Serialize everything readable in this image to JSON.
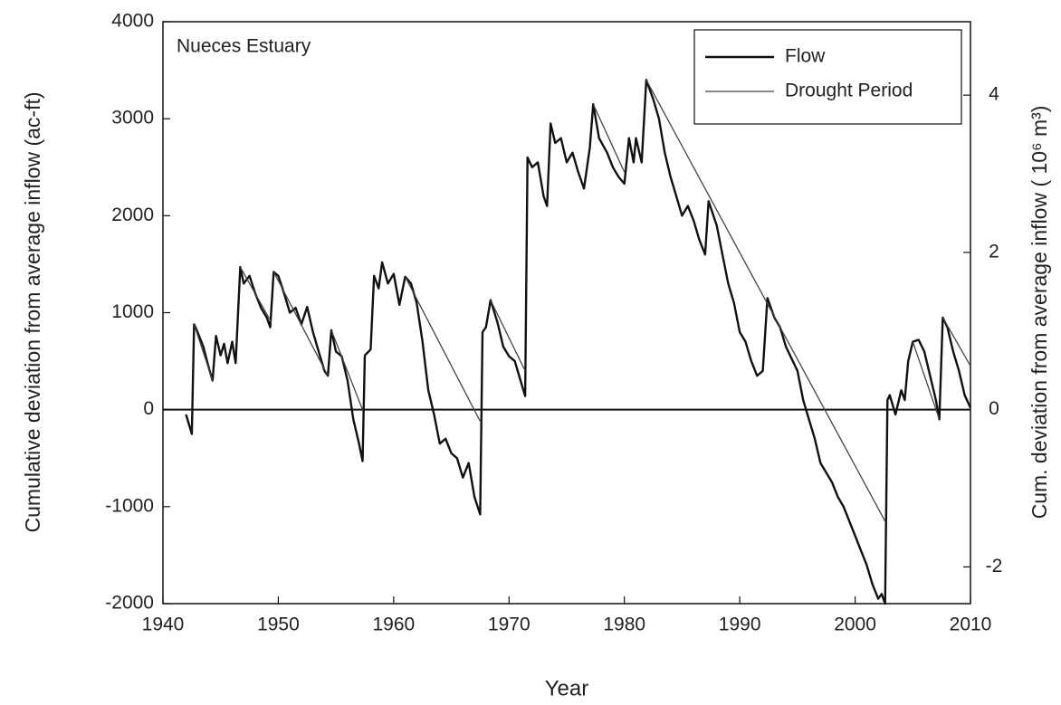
{
  "chart_data": {
    "type": "line",
    "annotation": "Nueces Estuary",
    "xlabel": "Year",
    "ylabel": "Cumulative deviation from average inflow (ac-ft)",
    "y2label": "Cum. deviation from average inflow ( 10⁶ m³)",
    "xlim": [
      1940,
      2010
    ],
    "xticks": [
      1940,
      1950,
      1960,
      1970,
      1980,
      1990,
      2000,
      2010
    ],
    "ylim": [
      -2000,
      4000
    ],
    "yticks": [
      -2000,
      -1000,
      0,
      1000,
      2000,
      3000,
      4000
    ],
    "y2lim": [
      -2.467,
      4.934
    ],
    "y2ticks": [
      -2,
      0,
      2,
      4
    ],
    "reference_line": 0,
    "legend": "upper right",
    "series": [
      {
        "name": "Flow",
        "color": "#111111",
        "x": [
          1942.0,
          1942.5,
          1942.7,
          1943,
          1943.5,
          1944,
          1944.3,
          1944.6,
          1945,
          1945.3,
          1945.6,
          1946,
          1946.3,
          1946.7,
          1947,
          1947.5,
          1948,
          1948.5,
          1949,
          1949.3,
          1949.6,
          1950,
          1950.5,
          1951,
          1951.5,
          1952,
          1952.5,
          1953,
          1953.5,
          1954,
          1954.3,
          1954.6,
          1955,
          1955.5,
          1956,
          1956.5,
          1957,
          1957.3,
          1957.5,
          1958,
          1958.3,
          1958.7,
          1959,
          1959.5,
          1960,
          1960.5,
          1961,
          1961.5,
          1962,
          1962.5,
          1963,
          1963.5,
          1964,
          1964.5,
          1965,
          1965.5,
          1966,
          1966.5,
          1967,
          1967.5,
          1967.7,
          1968,
          1968.4,
          1969,
          1969.5,
          1970,
          1970.5,
          1971,
          1971.4,
          1971.6,
          1972,
          1972.5,
          1973,
          1973.3,
          1973.6,
          1974,
          1974.5,
          1975,
          1975.5,
          1976,
          1976.5,
          1977,
          1977.3,
          1977.8,
          1978.5,
          1979,
          1979.5,
          1980,
          1980.4,
          1980.8,
          1981,
          1981.5,
          1981.9,
          1982.5,
          1983,
          1983.5,
          1984,
          1984.5,
          1985,
          1985.5,
          1986,
          1986.5,
          1987,
          1987.3,
          1988,
          1988.5,
          1989,
          1989.5,
          1990,
          1990.5,
          1991,
          1991.5,
          1992,
          1992.4,
          1993,
          1993.5,
          1994,
          1995,
          1995.5,
          1996,
          1996.5,
          1997,
          1997.5,
          1998,
          1998.5,
          1999,
          1999.5,
          2000,
          2000.5,
          2001,
          2001.5,
          2002,
          2002.3,
          2002.6,
          2002.8,
          2003,
          2003.5,
          2004,
          2004.3,
          2004.6,
          2005,
          2005.5,
          2006,
          2006.5,
          2007,
          2007.3,
          2007.6,
          2008,
          2008.5,
          2009,
          2009.5,
          2010
        ],
        "values": [
          -50,
          -250,
          880,
          800,
          650,
          420,
          300,
          760,
          560,
          680,
          480,
          700,
          480,
          1470,
          1300,
          1380,
          1200,
          1050,
          950,
          850,
          1420,
          1380,
          1200,
          1000,
          1050,
          880,
          1060,
          800,
          600,
          400,
          350,
          820,
          600,
          550,
          300,
          -100,
          -350,
          -530,
          560,
          620,
          1380,
          1250,
          1520,
          1300,
          1400,
          1080,
          1370,
          1300,
          1100,
          700,
          200,
          -50,
          -350,
          -300,
          -450,
          -500,
          -700,
          -550,
          -900,
          -1080,
          800,
          850,
          1130,
          900,
          650,
          550,
          500,
          300,
          140,
          2600,
          2500,
          2550,
          2200,
          2100,
          2950,
          2750,
          2800,
          2550,
          2650,
          2450,
          2280,
          2700,
          3150,
          2800,
          2650,
          2500,
          2400,
          2330,
          2800,
          2550,
          2800,
          2550,
          3400,
          3200,
          3000,
          2650,
          2400,
          2200,
          2000,
          2100,
          1950,
          1750,
          1600,
          2150,
          1900,
          1600,
          1300,
          1100,
          800,
          700,
          500,
          350,
          400,
          1150,
          950,
          850,
          650,
          400,
          100,
          -100,
          -300,
          -550,
          -650,
          -750,
          -900,
          -1000,
          -1150,
          -1300,
          -1450,
          -1600,
          -1800,
          -1950,
          -1900,
          -2000,
          100,
          150,
          -50,
          200,
          100,
          500,
          700,
          720,
          600,
          350,
          100,
          -100,
          950,
          850,
          600,
          400,
          150,
          20
        ]
      },
      {
        "name": "Drought Period",
        "color": "#444444",
        "x": [
          1942.7,
          1944.3,
          1944.3,
          1946.7,
          1949.4,
          1949.4,
          1949.6,
          1954.3,
          1954.3,
          1954.6,
          1957.3,
          1957.3,
          1961,
          1967.5,
          1967.5,
          1968.4,
          1971.4,
          1971.4,
          1977.3,
          1980,
          1980,
          1981.9,
          2002.6,
          2002.6,
          2005,
          2007.3,
          2007.3,
          2007.6,
          2010
        ],
        "values": [
          880,
          300,
          null,
          1470,
          900,
          null,
          1420,
          350,
          null,
          820,
          0,
          null,
          1370,
          -120,
          null,
          1130,
          400,
          null,
          3150,
          2450,
          null,
          3400,
          -1150,
          null,
          700,
          -100,
          null,
          950,
          450
        ]
      }
    ]
  }
}
